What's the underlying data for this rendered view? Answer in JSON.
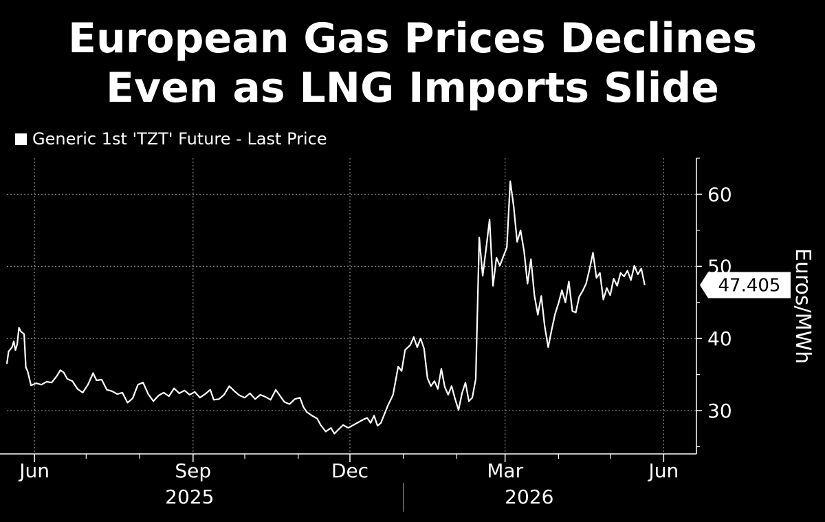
{
  "title_lines": [
    "European Gas Prices Declines",
    "Even as LNG Imports Slide"
  ],
  "legend": {
    "label": "Generic 1st 'TZT' Future - Last Price"
  },
  "colors": {
    "background": "#000000",
    "line": "#ffffff",
    "grid": "#8a8a8a",
    "callout_bg": "#ffffff",
    "callout_text": "#000000"
  },
  "chart_data": {
    "type": "line",
    "ylabel": "Euros/MWh",
    "ylim": [
      24,
      65
    ],
    "xlim": [
      "2025-05-16",
      "2026-06-20"
    ],
    "y_ticks": [
      30,
      40,
      50,
      60
    ],
    "x_ticks": [
      {
        "date": "2025-06-01",
        "label": "Jun"
      },
      {
        "date": "2025-09-01",
        "label": "Sep"
      },
      {
        "date": "2025-12-01",
        "label": "Dec"
      },
      {
        "date": "2026-03-01",
        "label": "Mar"
      },
      {
        "date": "2026-06-01",
        "label": "Jun"
      }
    ],
    "year_labels": [
      {
        "label": "2025",
        "date": "2025-08-30"
      },
      {
        "label": "2026",
        "date": "2026-03-15"
      }
    ],
    "year_divider": "2026-01-01",
    "grid": true,
    "last_value": "47.405",
    "series": [
      {
        "points": [
          [
            "2025-05-16",
            36.5
          ],
          [
            "2025-05-17",
            38.2
          ],
          [
            "2025-05-19",
            38.8
          ],
          [
            "2025-05-20",
            39.6
          ],
          [
            "2025-05-21",
            38.4
          ],
          [
            "2025-05-22",
            39.2
          ],
          [
            "2025-05-23",
            41.5
          ],
          [
            "2025-05-24",
            41.0
          ],
          [
            "2025-05-26",
            40.6
          ],
          [
            "2025-05-27",
            36.0
          ],
          [
            "2025-05-28",
            35.5
          ],
          [
            "2025-05-30",
            33.5
          ],
          [
            "2025-06-02",
            33.8
          ],
          [
            "2025-06-05",
            33.6
          ],
          [
            "2025-06-08",
            34.0
          ],
          [
            "2025-06-11",
            33.9
          ],
          [
            "2025-06-14",
            34.8
          ],
          [
            "2025-06-16",
            35.6
          ],
          [
            "2025-06-18",
            35.3
          ],
          [
            "2025-06-20",
            34.4
          ],
          [
            "2025-06-23",
            34.1
          ],
          [
            "2025-06-26",
            33.0
          ],
          [
            "2025-06-29",
            32.5
          ],
          [
            "2025-07-02",
            33.6
          ],
          [
            "2025-07-05",
            35.2
          ],
          [
            "2025-07-07",
            34.2
          ],
          [
            "2025-07-10",
            34.3
          ],
          [
            "2025-07-13",
            32.9
          ],
          [
            "2025-07-16",
            32.7
          ],
          [
            "2025-07-19",
            32.3
          ],
          [
            "2025-07-22",
            32.5
          ],
          [
            "2025-07-25",
            31.1
          ],
          [
            "2025-07-28",
            31.7
          ],
          [
            "2025-07-31",
            33.6
          ],
          [
            "2025-08-03",
            33.9
          ],
          [
            "2025-08-06",
            32.3
          ],
          [
            "2025-08-09",
            31.3
          ],
          [
            "2025-08-12",
            32.1
          ],
          [
            "2025-08-15",
            32.5
          ],
          [
            "2025-08-18",
            32.0
          ],
          [
            "2025-08-21",
            33.1
          ],
          [
            "2025-08-24",
            32.4
          ],
          [
            "2025-08-27",
            32.8
          ],
          [
            "2025-08-30",
            32.2
          ],
          [
            "2025-09-02",
            32.6
          ],
          [
            "2025-09-05",
            31.8
          ],
          [
            "2025-09-08",
            32.3
          ],
          [
            "2025-09-11",
            32.9
          ],
          [
            "2025-09-13",
            31.5
          ],
          [
            "2025-09-16",
            31.6
          ],
          [
            "2025-09-19",
            32.2
          ],
          [
            "2025-09-22",
            33.4
          ],
          [
            "2025-09-25",
            32.7
          ],
          [
            "2025-09-28",
            32.1
          ],
          [
            "2025-10-01",
            31.8
          ],
          [
            "2025-10-04",
            32.4
          ],
          [
            "2025-10-07",
            31.6
          ],
          [
            "2025-10-10",
            32.2
          ],
          [
            "2025-10-13",
            31.9
          ],
          [
            "2025-10-16",
            31.5
          ],
          [
            "2025-10-19",
            32.9
          ],
          [
            "2025-10-21",
            32.2
          ],
          [
            "2025-10-24",
            31.2
          ],
          [
            "2025-10-27",
            30.9
          ],
          [
            "2025-10-30",
            31.6
          ],
          [
            "2025-11-02",
            31.8
          ],
          [
            "2025-11-04",
            30.5
          ],
          [
            "2025-11-06",
            29.8
          ],
          [
            "2025-11-09",
            29.3
          ],
          [
            "2025-11-12",
            28.9
          ],
          [
            "2025-11-14",
            28.0
          ],
          [
            "2025-11-17",
            27.1
          ],
          [
            "2025-11-20",
            27.6
          ],
          [
            "2025-11-22",
            26.8
          ],
          [
            "2025-11-24",
            27.3
          ],
          [
            "2025-11-27",
            28.0
          ],
          [
            "2025-11-30",
            27.6
          ],
          [
            "2025-12-03",
            28.0
          ],
          [
            "2025-12-06",
            28.4
          ],
          [
            "2025-12-09",
            28.8
          ],
          [
            "2025-12-11",
            29.0
          ],
          [
            "2025-12-13",
            28.3
          ],
          [
            "2025-12-15",
            29.3
          ],
          [
            "2025-12-17",
            27.9
          ],
          [
            "2025-12-19",
            28.3
          ],
          [
            "2025-12-21",
            29.5
          ],
          [
            "2025-12-23",
            30.7
          ],
          [
            "2025-12-26",
            32.2
          ],
          [
            "2025-12-29",
            36.1
          ],
          [
            "2025-12-31",
            35.5
          ],
          [
            "2026-01-02",
            38.4
          ],
          [
            "2026-01-05",
            39.1
          ],
          [
            "2026-01-07",
            40.2
          ],
          [
            "2026-01-09",
            38.8
          ],
          [
            "2026-01-11",
            40.0
          ],
          [
            "2026-01-13",
            38.6
          ],
          [
            "2026-01-15",
            34.5
          ],
          [
            "2026-01-17",
            33.4
          ],
          [
            "2026-01-19",
            34.1
          ],
          [
            "2026-01-21",
            33.0
          ],
          [
            "2026-01-23",
            35.8
          ],
          [
            "2026-01-25",
            33.3
          ],
          [
            "2026-01-27",
            32.2
          ],
          [
            "2026-01-29",
            33.4
          ],
          [
            "2026-01-31",
            31.6
          ],
          [
            "2026-02-02",
            30.1
          ],
          [
            "2026-02-04",
            32.4
          ],
          [
            "2026-02-06",
            33.9
          ],
          [
            "2026-02-08",
            31.3
          ],
          [
            "2026-02-10",
            31.8
          ],
          [
            "2026-02-12",
            34.4
          ],
          [
            "2026-02-14",
            54.0
          ],
          [
            "2026-02-16",
            48.7
          ],
          [
            "2026-02-18",
            52.5
          ],
          [
            "2026-02-20",
            56.5
          ],
          [
            "2026-02-22",
            47.3
          ],
          [
            "2026-02-24",
            51.2
          ],
          [
            "2026-02-26",
            50.1
          ],
          [
            "2026-02-28",
            51.4
          ],
          [
            "2026-03-02",
            52.6
          ],
          [
            "2026-03-04",
            61.8
          ],
          [
            "2026-03-06",
            58.3
          ],
          [
            "2026-03-08",
            53.4
          ],
          [
            "2026-03-10",
            55.0
          ],
          [
            "2026-03-12",
            52.1
          ],
          [
            "2026-03-14",
            47.6
          ],
          [
            "2026-03-16",
            51.0
          ],
          [
            "2026-03-18",
            46.0
          ],
          [
            "2026-03-20",
            43.3
          ],
          [
            "2026-03-22",
            45.9
          ],
          [
            "2026-03-24",
            41.7
          ],
          [
            "2026-03-26",
            38.8
          ],
          [
            "2026-03-28",
            41.2
          ],
          [
            "2026-03-30",
            43.4
          ],
          [
            "2026-04-01",
            44.9
          ],
          [
            "2026-04-03",
            46.7
          ],
          [
            "2026-04-05",
            45.0
          ],
          [
            "2026-04-07",
            47.9
          ],
          [
            "2026-04-09",
            43.8
          ],
          [
            "2026-04-11",
            43.6
          ],
          [
            "2026-04-13",
            45.8
          ],
          [
            "2026-04-15",
            46.6
          ],
          [
            "2026-04-17",
            47.6
          ],
          [
            "2026-04-19",
            49.6
          ],
          [
            "2026-04-21",
            51.9
          ],
          [
            "2026-04-23",
            48.4
          ],
          [
            "2026-04-25",
            49.1
          ],
          [
            "2026-04-27",
            45.4
          ],
          [
            "2026-04-29",
            47.0
          ],
          [
            "2026-05-01",
            46.0
          ],
          [
            "2026-05-03",
            48.3
          ],
          [
            "2026-05-05",
            47.3
          ],
          [
            "2026-05-07",
            49.1
          ],
          [
            "2026-05-09",
            48.6
          ],
          [
            "2026-05-11",
            49.4
          ],
          [
            "2026-05-13",
            48.1
          ],
          [
            "2026-05-15",
            50.1
          ],
          [
            "2026-05-17",
            48.9
          ],
          [
            "2026-05-19",
            49.7
          ],
          [
            "2026-05-21",
            47.405
          ]
        ]
      }
    ]
  }
}
